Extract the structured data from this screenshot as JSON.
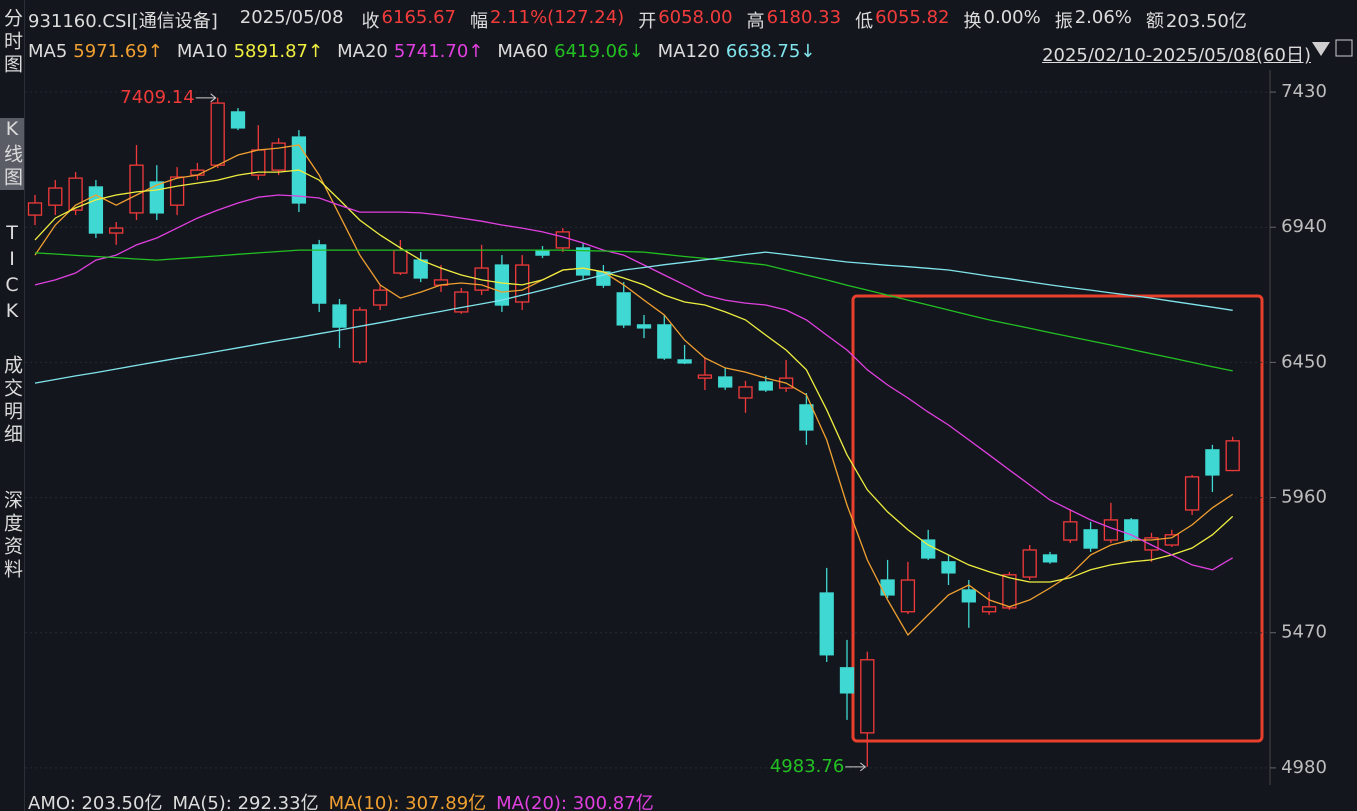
{
  "header": {
    "symbol": "931160.CSI[通信设备]",
    "date": "2025/05/08",
    "items": [
      {
        "label": "收",
        "value": "6165.67",
        "color": "#f23c3c"
      },
      {
        "label": "幅",
        "value": "2.11%(127.24)",
        "color": "#f23c3c"
      },
      {
        "label": "开",
        "value": "6058.00",
        "color": "#f23c3c"
      },
      {
        "label": "高",
        "value": "6180.33",
        "color": "#f23c3c"
      },
      {
        "label": "低",
        "value": "6055.82",
        "color": "#f23c3c"
      },
      {
        "label": "换",
        "value": "0.00%",
        "color": "#dcdcdc"
      },
      {
        "label": "振",
        "value": "2.06%",
        "color": "#dcdcdc"
      },
      {
        "label": "额",
        "value": "203.50亿",
        "color": "#dcdcdc"
      }
    ],
    "range": "2025/02/10-2025/05/08(60日)"
  },
  "tabs": [
    "分时图",
    "K线图",
    "TICK",
    "成交明细",
    "深度资料"
  ],
  "footer": [
    {
      "text": "AMO: 203.50亿",
      "color": "#dcdcdc"
    },
    {
      "text": "MA(5): 292.33亿",
      "color": "#dcdcdc"
    },
    {
      "text": "MA(10): 307.89亿",
      "color": "#f0a030"
    },
    {
      "text": "MA(20): 300.87亿",
      "color": "#e040e0"
    }
  ],
  "chart_data": {
    "type": "candlestick",
    "up_color": "#f03a3a",
    "down_color": "#3fd8d2",
    "ylim": [
      4918,
      7510
    ],
    "yticks": [
      7430,
      6940,
      6450,
      5960,
      5470,
      4980
    ],
    "grid": true,
    "open": [
      6984,
      7020,
      7002,
      7086,
      6919,
      6992,
      7104,
      7020,
      7129,
      7165,
      7358,
      7129,
      7147,
      7267,
      6876,
      6658,
      6452,
      6658,
      6774,
      6821,
      6730,
      6633,
      6712,
      6803,
      6669,
      6857,
      6865,
      6865,
      6778,
      6702,
      6586,
      6586,
      6459,
      6393,
      6397,
      6321,
      6379,
      6357,
      6296,
      5614,
      5343,
      5107,
      5661,
      5546,
      5806,
      5727,
      5625,
      5546,
      5560,
      5672,
      5752,
      5806,
      5843,
      5806,
      5879,
      5770,
      5788,
      5915,
      6133,
      6058
    ],
    "high": [
      7057,
      7111,
      7140,
      7111,
      6959,
      7238,
      7165,
      7158,
      7173,
      7409.14,
      7372,
      7310,
      7263,
      7292,
      6894,
      6680,
      6651,
      6730,
      6894,
      6850,
      6803,
      6720,
      6876,
      6839,
      6839,
      6872,
      6937,
      6883,
      6803,
      6741,
      6622,
      6622,
      6513,
      6466,
      6430,
      6383,
      6401,
      6459,
      6339,
      5705,
      5444,
      5401,
      5734,
      5727,
      5843,
      5752,
      5661,
      5618,
      5690,
      5788,
      5763,
      5915,
      5872,
      5941,
      5886,
      5832,
      5843,
      6042,
      6151,
      6180.33
    ],
    "low": [
      6948,
      6984,
      6984,
      6901,
      6876,
      6966,
      6966,
      6984,
      7111,
      7155,
      7292,
      7111,
      7129,
      6995,
      6633,
      6502,
      6444,
      6640,
      6767,
      6741,
      6705,
      6626,
      6694,
      6633,
      6640,
      6828,
      6850,
      6749,
      6720,
      6575,
      6538,
      6459,
      6444,
      6350,
      6350,
      6267,
      6343,
      6343,
      6151,
      5364,
      5154,
      4983.76,
      5596,
      5538,
      5734,
      5643,
      5488,
      5535,
      5553,
      5661,
      5720,
      5795,
      5763,
      5795,
      5799,
      5727,
      5781,
      5897,
      5980,
      6055.82
    ],
    "close": [
      7028,
      7082,
      7118,
      6919,
      6937,
      7165,
      6992,
      7122,
      7147,
      7390,
      7300,
      7220,
      7245,
      7028,
      6665,
      6578,
      6640,
      6712,
      6857,
      6756,
      6749,
      6705,
      6792,
      6658,
      6803,
      6839,
      6923,
      6767,
      6730,
      6586,
      6575,
      6466,
      6448,
      6404,
      6361,
      6361,
      6350,
      6393,
      6205,
      5390,
      5252,
      5372,
      5607,
      5661,
      5741,
      5687,
      5582,
      5564,
      5680,
      5770,
      5727,
      5872,
      5777,
      5879,
      5806,
      5814,
      5825,
      6035,
      6042,
      6165.67
    ],
    "series": [
      {
        "name": "MA5",
        "color": "#f0a030",
        "last_label": "5971.69↑",
        "values": [
          6839,
          6948,
          7020,
          7057,
          7020,
          7057,
          7093,
          7118,
          7129,
          7165,
          7202,
          7220,
          7227,
          7238,
          7129,
          6984,
          6839,
          6731,
          6683,
          6705,
          6731,
          6738,
          6731,
          6705,
          6712,
          6749,
          6785,
          6792,
          6778,
          6731,
          6676,
          6622,
          6531,
          6466,
          6430,
          6415,
          6393,
          6375,
          6332,
          6169,
          5933,
          5734,
          5589,
          5462,
          5535,
          5607,
          5643,
          5589,
          5564,
          5589,
          5632,
          5680,
          5752,
          5788,
          5806,
          5806,
          5814,
          5861,
          5923,
          5971.69
        ]
      },
      {
        "name": "MA10",
        "color": "#eeee40",
        "last_label": "5891.87↑",
        "values": [
          6894,
          6973,
          7010,
          7039,
          7057,
          7068,
          7075,
          7089,
          7100,
          7111,
          7129,
          7140,
          7140,
          7147,
          7111,
          7039,
          6966,
          6912,
          6865,
          6821,
          6792,
          6767,
          6749,
          6738,
          6731,
          6749,
          6785,
          6792,
          6778,
          6756,
          6731,
          6694,
          6669,
          6658,
          6633,
          6604,
          6549,
          6495,
          6423,
          6278,
          6115,
          5988,
          5908,
          5843,
          5788,
          5752,
          5716,
          5691,
          5669,
          5654,
          5654,
          5669,
          5698,
          5716,
          5727,
          5734,
          5752,
          5777,
          5825,
          5891.87
        ]
      },
      {
        "name": "MA20",
        "color": "#e040e0",
        "last_label": "5741.70↑",
        "values": [
          6731,
          6749,
          6774,
          6821,
          6839,
          6876,
          6901,
          6937,
          6973,
          7002,
          7028,
          7049,
          7057,
          7053,
          7046,
          7020,
          6995,
          6995,
          6995,
          6992,
          6984,
          6973,
          6962,
          6948,
          6937,
          6923,
          6905,
          6883,
          6857,
          6839,
          6803,
          6767,
          6731,
          6694,
          6676,
          6665,
          6658,
          6640,
          6604,
          6549,
          6495,
          6423,
          6368,
          6321,
          6270,
          6223,
          6169,
          6115,
          6060,
          6006,
          5951,
          5915,
          5879,
          5850,
          5825,
          5788,
          5752,
          5716,
          5698,
          5741.7
        ]
      },
      {
        "name": "MA60",
        "color": "#22c022",
        "last_label": "6419.06↓",
        "values": [
          6847,
          6843,
          6838,
          6834,
          6830,
          6825,
          6821,
          6826,
          6831,
          6836,
          6842,
          6847,
          6852,
          6857,
          6857,
          6857,
          6857,
          6857,
          6857,
          6857,
          6857,
          6857,
          6857,
          6857,
          6857,
          6857,
          6857,
          6855,
          6854,
          6852,
          6850,
          6842,
          6834,
          6827,
          6819,
          6811,
          6803,
          6785,
          6767,
          6749,
          6730,
          6712,
          6694,
          6676,
          6658,
          6640,
          6622,
          6604,
          6589,
          6574,
          6558,
          6543,
          6528,
          6513,
          6497,
          6481,
          6466,
          6450,
          6434,
          6419.06
        ]
      },
      {
        "name": "MA120",
        "color": "#80e4ec",
        "last_label": "6638.75↓",
        "values": [
          6375,
          6388,
          6401,
          6413,
          6426,
          6439,
          6452,
          6465,
          6477,
          6490,
          6503,
          6516,
          6529,
          6541,
          6554,
          6567,
          6581,
          6594,
          6608,
          6622,
          6635,
          6649,
          6662,
          6676,
          6694,
          6712,
          6731,
          6749,
          6767,
          6785,
          6794,
          6804,
          6813,
          6822,
          6831,
          6841,
          6850,
          6841,
          6832,
          6823,
          6814,
          6808,
          6802,
          6797,
          6791,
          6785,
          6774,
          6763,
          6753,
          6742,
          6731,
          6721,
          6712,
          6702,
          6693,
          6683,
          6672,
          6661,
          6650,
          6638.75
        ]
      }
    ]
  }
}
